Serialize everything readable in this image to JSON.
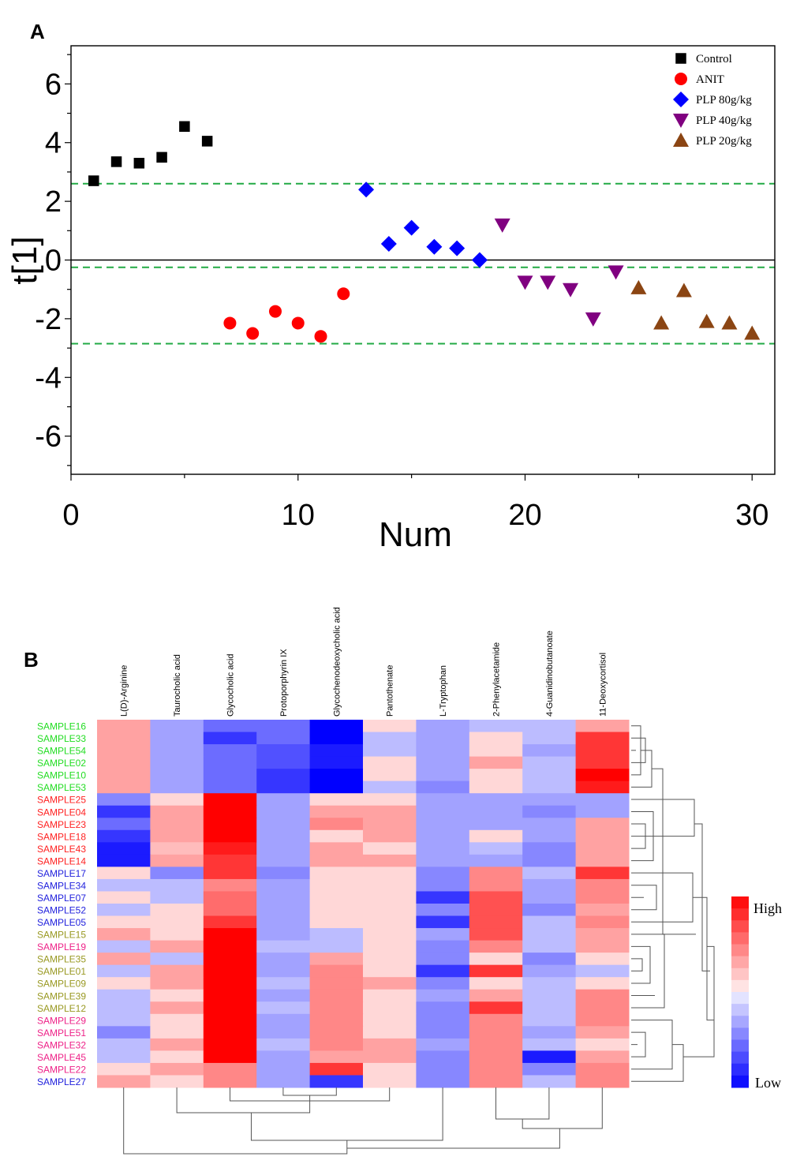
{
  "chart_data": [
    {
      "type": "scatter",
      "panel_label": "A",
      "xlabel": "Num",
      "ylabel": "t[1]",
      "xlim": [
        0,
        31
      ],
      "ylim": [
        -7.3,
        7.3
      ],
      "xticks": [
        0,
        10,
        20,
        30
      ],
      "yticks": [
        -6,
        -4,
        -2,
        0,
        2,
        4,
        6
      ],
      "reference_lines": [
        2.6,
        -0.25,
        -2.85
      ],
      "legend_position": "top-right",
      "series": [
        {
          "name": "Control",
          "marker": "square",
          "color": "#000000",
          "points": [
            [
              1,
              2.7
            ],
            [
              2,
              3.35
            ],
            [
              3,
              3.3
            ],
            [
              4,
              3.5
            ],
            [
              5,
              4.55
            ],
            [
              6,
              4.05
            ]
          ]
        },
        {
          "name": "ANIT",
          "marker": "circle",
          "color": "#ff0000",
          "points": [
            [
              7,
              -2.15
            ],
            [
              8,
              -2.5
            ],
            [
              9,
              -1.75
            ],
            [
              10,
              -2.15
            ],
            [
              11,
              -2.6
            ],
            [
              12,
              -1.15
            ]
          ]
        },
        {
          "name": "PLP 80g/kg",
          "marker": "diamond",
          "color": "#0000ff",
          "points": [
            [
              13,
              2.4
            ],
            [
              14,
              0.55
            ],
            [
              15,
              1.1
            ],
            [
              16,
              0.45
            ],
            [
              17,
              0.4
            ],
            [
              18,
              0.0
            ]
          ]
        },
        {
          "name": "PLP 40g/kg",
          "marker": "triangle-down",
          "color": "#800080",
          "points": [
            [
              19,
              1.2
            ],
            [
              20,
              -0.75
            ],
            [
              21,
              -0.75
            ],
            [
              22,
              -1.0
            ],
            [
              23,
              -2.0
            ],
            [
              24,
              -0.4
            ]
          ]
        },
        {
          "name": "PLP 20g/kg",
          "marker": "triangle-up",
          "color": "#8b4513",
          "points": [
            [
              25,
              -0.95
            ],
            [
              26,
              -2.15
            ],
            [
              27,
              -1.05
            ],
            [
              28,
              -2.1
            ],
            [
              29,
              -2.15
            ],
            [
              30,
              -2.5
            ]
          ]
        }
      ]
    },
    {
      "type": "heatmap",
      "panel_label": "B",
      "columns": [
        "L(D)-Arginine",
        "Taurocholic acid",
        "Glycocholic acid",
        "Protoporphyrin IX",
        "Glycochenodeoxycholic acid",
        "Pantothenate",
        "L-Tryptophan",
        "2-Phenylacetamide",
        "4-Guanidinobutanoate",
        "11-Deoxycortisol"
      ],
      "rows": [
        {
          "name": "SAMPLE16",
          "group_color": "#22dd22",
          "values": [
            3,
            -3,
            -5,
            -5,
            -9,
            1,
            -3,
            -2,
            -2,
            3
          ]
        },
        {
          "name": "SAMPLE33",
          "group_color": "#22dd22",
          "values": [
            3,
            -3,
            -7,
            -5,
            -9,
            -2,
            -3,
            1,
            -2,
            7
          ]
        },
        {
          "name": "SAMPLE54",
          "group_color": "#22dd22",
          "values": [
            3,
            -3,
            -5,
            -6,
            -8,
            -2,
            -3,
            1,
            -3,
            7
          ]
        },
        {
          "name": "SAMPLE02",
          "group_color": "#22dd22",
          "values": [
            3,
            -3,
            -5,
            -6,
            -8,
            1,
            -3,
            3,
            -2,
            7
          ]
        },
        {
          "name": "SAMPLE10",
          "group_color": "#22dd22",
          "values": [
            3,
            -3,
            -5,
            -7,
            -9,
            1,
            -3,
            1,
            -2,
            9
          ]
        },
        {
          "name": "SAMPLE53",
          "group_color": "#22dd22",
          "values": [
            3,
            -3,
            -5,
            -7,
            -9,
            -2,
            -4,
            1,
            -2,
            8
          ]
        },
        {
          "name": "SAMPLE25",
          "group_color": "#ff2222",
          "values": [
            -4,
            1,
            9,
            -3,
            1,
            1,
            -3,
            -3,
            -3,
            -3
          ]
        },
        {
          "name": "SAMPLE04",
          "group_color": "#ff2222",
          "values": [
            -7,
            3,
            9,
            -3,
            3,
            3,
            -3,
            -3,
            -4,
            -3
          ]
        },
        {
          "name": "SAMPLE23",
          "group_color": "#ff2222",
          "values": [
            -5,
            3,
            9,
            -3,
            4,
            3,
            -3,
            -3,
            -3,
            3
          ]
        },
        {
          "name": "SAMPLE18",
          "group_color": "#ff2222",
          "values": [
            -7,
            3,
            9,
            -3,
            1,
            3,
            -3,
            1,
            -3,
            3
          ]
        },
        {
          "name": "SAMPLE43",
          "group_color": "#ff2222",
          "values": [
            -8,
            2,
            8,
            -3,
            3,
            1,
            -3,
            -2,
            -4,
            3
          ]
        },
        {
          "name": "SAMPLE14",
          "group_color": "#ff2222",
          "values": [
            -8,
            3,
            7,
            -3,
            3,
            3,
            -3,
            -3,
            -4,
            3
          ]
        },
        {
          "name": "SAMPLE17",
          "group_color": "#2222dd",
          "values": [
            1,
            -4,
            7,
            -4,
            1,
            1,
            -4,
            4,
            -2,
            7
          ]
        },
        {
          "name": "SAMPLE34",
          "group_color": "#2222dd",
          "values": [
            -2,
            -2,
            4,
            -3,
            1,
            1,
            -4,
            4,
            -3,
            4
          ]
        },
        {
          "name": "SAMPLE07",
          "group_color": "#2222dd",
          "values": [
            1,
            -2,
            5,
            -3,
            1,
            1,
            -7,
            6,
            -3,
            4
          ]
        },
        {
          "name": "SAMPLE52",
          "group_color": "#2222dd",
          "values": [
            -2,
            1,
            5,
            -3,
            1,
            1,
            -4,
            6,
            -4,
            3
          ]
        },
        {
          "name": "SAMPLE05",
          "group_color": "#2222dd",
          "values": [
            1,
            1,
            7,
            -3,
            1,
            1,
            -7,
            6,
            -2,
            4
          ]
        },
        {
          "name": "SAMPLE15",
          "group_color": "#999922",
          "values": [
            3,
            1,
            9,
            -3,
            -2,
            1,
            -3,
            6,
            -2,
            3
          ]
        },
        {
          "name": "SAMPLE19",
          "group_color": "#ee2288",
          "values": [
            -2,
            3,
            9,
            -2,
            -2,
            1,
            -4,
            4,
            -2,
            3
          ]
        },
        {
          "name": "SAMPLE35",
          "group_color": "#999922",
          "values": [
            3,
            -2,
            9,
            -3,
            3,
            1,
            -4,
            1,
            -4,
            1
          ]
        },
        {
          "name": "SAMPLE01",
          "group_color": "#999922",
          "values": [
            -2,
            3,
            9,
            -3,
            4,
            1,
            -7,
            7,
            -3,
            -2
          ]
        },
        {
          "name": "SAMPLE09",
          "group_color": "#999922",
          "values": [
            1,
            3,
            9,
            -2,
            4,
            3,
            -4,
            1,
            -2,
            1
          ]
        },
        {
          "name": "SAMPLE39",
          "group_color": "#999922",
          "values": [
            -2,
            1,
            9,
            -3,
            4,
            1,
            -3,
            3,
            -2,
            4
          ]
        },
        {
          "name": "SAMPLE12",
          "group_color": "#999922",
          "values": [
            -2,
            3,
            9,
            -2,
            4,
            1,
            -4,
            7,
            -2,
            4
          ]
        },
        {
          "name": "SAMPLE29",
          "group_color": "#ee2288",
          "values": [
            -2,
            1,
            9,
            -3,
            4,
            1,
            -4,
            4,
            -2,
            4
          ]
        },
        {
          "name": "SAMPLE51",
          "group_color": "#ee2288",
          "values": [
            -4,
            1,
            9,
            -3,
            4,
            1,
            -4,
            4,
            -3,
            3
          ]
        },
        {
          "name": "SAMPLE32",
          "group_color": "#ee2288",
          "values": [
            -2,
            3,
            9,
            -2,
            4,
            3,
            -3,
            4,
            -2,
            1
          ]
        },
        {
          "name": "SAMPLE45",
          "group_color": "#ee2288",
          "values": [
            -2,
            1,
            9,
            -3,
            3,
            3,
            -4,
            4,
            -8,
            3
          ]
        },
        {
          "name": "SAMPLE22",
          "group_color": "#ee2288",
          "values": [
            1,
            3,
            4,
            -3,
            7,
            1,
            -4,
            4,
            -4,
            4
          ]
        },
        {
          "name": "SAMPLE27",
          "group_color": "#2222dd",
          "values": [
            3,
            1,
            4,
            -3,
            -7,
            1,
            -4,
            4,
            -2,
            4
          ]
        }
      ],
      "color_scale": {
        "high_label": "High",
        "low_label": "Low",
        "high_color": "#ff0000",
        "low_color": "#0000ff",
        "mid_color": "#ffffff",
        "range": [
          -9,
          9
        ]
      }
    }
  ]
}
